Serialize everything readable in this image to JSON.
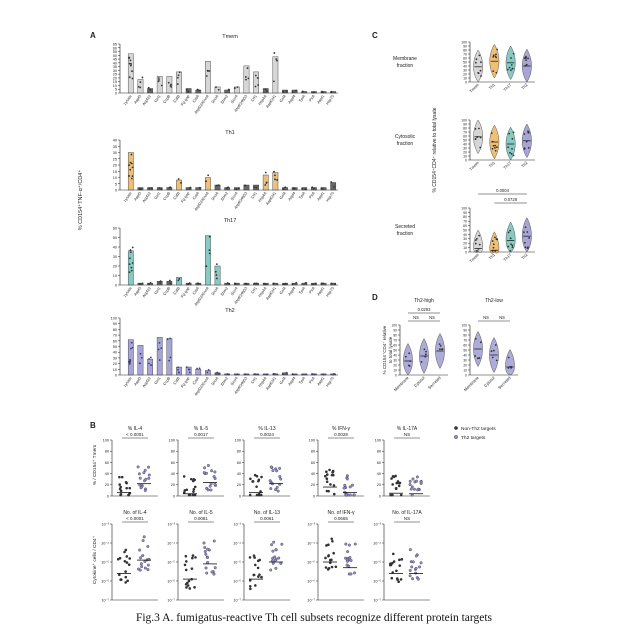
{
  "caption": "Fig.3 A. fumigatus-reactive Th cell subsets recognize different protein targets",
  "panel_letters": {
    "A": "A",
    "B": "B",
    "C": "C",
    "D": "D"
  },
  "colors": {
    "Tmem": "#c8c8c8",
    "Th1": "#e8a94c",
    "Th17": "#5fb8b0",
    "Th2": "#8a87c8",
    "Th2_dark": "#3d3a8a",
    "nonTh2": "#333333",
    "th2target": "#8e8bd0"
  },
  "panelA": {
    "ylabel": "% CD154⁺TNF-α⁺/CD4⁺",
    "categories": [
      "Lysate",
      "Aspf3",
      "Aspf22",
      "Gel1",
      "CcpB",
      "CatB",
      "Fg-gap",
      "CatA",
      "Aspf22/EnoA",
      "SnoA",
      "Shm2",
      "Scw4",
      "AspfOrf6D3",
      "Crf1",
      "Hsp4A",
      "AspfOrf1",
      "Gel4",
      "Aspf4",
      "TpiA",
      "PsA",
      "Aspf1",
      "Hsp70"
    ],
    "chart_data": [
      {
        "type": "bar",
        "subset": "Tmem",
        "title": "Tmem",
        "categories": [
          "Lysate",
          "Aspf3",
          "Aspf22",
          "Gel1",
          "CcpB",
          "CatB",
          "Fg-gap",
          "CatA",
          "Aspf22/EnoA",
          "SnoA",
          "Shm2",
          "Scw4",
          "AspfOrf6D3",
          "Crf1",
          "Hsp4A",
          "AspfOrf1",
          "Gel4",
          "Aspf4",
          "TpiA",
          "PsA",
          "Aspf1",
          "Hsp70"
        ],
        "values": [
          52,
          18,
          6,
          22,
          22,
          28,
          6,
          4,
          42,
          8,
          4,
          8,
          36,
          28,
          6,
          48,
          4,
          4,
          2,
          2,
          2,
          2
        ],
        "yticks": [
          "65",
          "60",
          "55",
          "50",
          "45",
          "40",
          "35",
          "30",
          "25",
          "20",
          "15",
          "10",
          "5",
          "0"
        ],
        "ylim": [
          0,
          65
        ]
      },
      {
        "type": "bar",
        "subset": "Th1",
        "title": "Th1",
        "categories": [
          "Lysate",
          "Aspf3",
          "Aspf22",
          "Gel1",
          "CcpB",
          "CatB",
          "Fg-gap",
          "CatA",
          "Aspf22/EnoA",
          "SnoA",
          "Shm2",
          "Scw4",
          "AspfOrf6D3",
          "Crf1",
          "Hsp4A",
          "AspfOrf1",
          "Gel4",
          "Aspf4",
          "TpiA",
          "PsA",
          "Aspf1",
          "Hsp70"
        ],
        "values": [
          30,
          2,
          2,
          2,
          2,
          8,
          2,
          2,
          10,
          4,
          2,
          2,
          4,
          4,
          12,
          14,
          2,
          2,
          2,
          2,
          2,
          6
        ],
        "yticks": [
          "40",
          "35",
          "30",
          "25",
          "20",
          "15",
          "10",
          "5",
          "0"
        ],
        "ylim": [
          0,
          40
        ]
      },
      {
        "type": "bar",
        "subset": "Th17",
        "title": "Th17",
        "categories": [
          "Lysate",
          "Aspf3",
          "Aspf22",
          "Gel1",
          "CcpB",
          "CatB",
          "Fg-gap",
          "CatA",
          "Aspf22/EnoA",
          "SnoA",
          "Shm2",
          "Scw4",
          "AspfOrf6D3",
          "Crf1",
          "Hsp4A",
          "AspfOrf1",
          "Gel4",
          "Aspf4",
          "TpiA",
          "PsA",
          "Aspf1",
          "Hsp70"
        ],
        "values": [
          36,
          2,
          2,
          4,
          4,
          8,
          2,
          2,
          52,
          20,
          2,
          2,
          2,
          2,
          2,
          2,
          2,
          2,
          2,
          2,
          2,
          2
        ],
        "yticks": [
          "60",
          "50",
          "40",
          "30",
          "20",
          "10",
          "0"
        ],
        "ylim": [
          0,
          60
        ]
      },
      {
        "type": "bar",
        "subset": "Th2",
        "title": "Th2",
        "categories": [
          "Lysate",
          "Aspf3",
          "Aspf22",
          "Gel1",
          "CcpB",
          "CatB",
          "Fg-gap",
          "CatA",
          "Aspf22/EnoA",
          "SnoA",
          "Shm2",
          "Scw4",
          "AspfOrf6D3",
          "Crf1",
          "Hsp4A",
          "AspfOrf1",
          "Gel4",
          "Aspf4",
          "TpiA",
          "PsA",
          "Aspf1",
          "Hsp70"
        ],
        "values": [
          62,
          52,
          28,
          66,
          64,
          14,
          14,
          10,
          8,
          4,
          2,
          2,
          2,
          2,
          2,
          2,
          4,
          2,
          2,
          2,
          2,
          2
        ],
        "yticks": [
          "100",
          "90",
          "80",
          "70",
          "60",
          "50",
          "40",
          "30",
          "20",
          "10",
          "0"
        ],
        "ylim": [
          0,
          100
        ]
      }
    ]
  },
  "panelB": {
    "ylabel_top": "% / CD154⁺ Tmem",
    "ylabel_bottom": "Cytokine⁺ cells / CD4⁺",
    "legend": [
      "Non-Th2 targets",
      "Th2 targets"
    ],
    "top_yticks": [
      "100",
      "80",
      "60",
      "40",
      "20",
      "0"
    ],
    "bottom_yticks": [
      "10⁻³",
      "10⁻⁴",
      "10⁻⁵",
      "10⁻⁶",
      "10⁻⁷"
    ],
    "chart_data": [
      {
        "type": "scatter",
        "row": "percent",
        "title": "% IL-4",
        "p": "< 0.0001",
        "groups": [
          {
            "name": "Non-Th2 targets",
            "median": 6
          },
          {
            "name": "Th2 targets",
            "median": 22
          }
        ],
        "ylim": [
          0,
          100
        ]
      },
      {
        "type": "scatter",
        "row": "percent",
        "title": "% IL-5",
        "p": "0.0017",
        "groups": [
          {
            "name": "Non-Th2 targets",
            "median": 4
          },
          {
            "name": "Th2 targets",
            "median": 24
          }
        ],
        "ylim": [
          0,
          100
        ]
      },
      {
        "type": "scatter",
        "row": "percent",
        "title": "% IL-13",
        "p": "0.0024",
        "groups": [
          {
            "name": "Non-Th2 targets",
            "median": 6
          },
          {
            "name": "Th2 targets",
            "median": 22
          }
        ],
        "ylim": [
          0,
          100
        ]
      },
      {
        "type": "scatter",
        "row": "percent",
        "title": "% IFN-γ",
        "p": "0.0028",
        "groups": [
          {
            "name": "Non-Th2 targets",
            "median": 16
          },
          {
            "name": "Th2 targets",
            "median": 6
          }
        ],
        "ylim": [
          0,
          100
        ]
      },
      {
        "type": "scatter",
        "row": "percent",
        "title": "% IL-17A",
        "p": "NS",
        "groups": [
          {
            "name": "Non-Th2 targets",
            "median": 5
          },
          {
            "name": "Th2 targets",
            "median": 4
          }
        ],
        "ylim": [
          0,
          100
        ]
      },
      {
        "type": "scatter",
        "row": "count",
        "title": "No. of IL-4",
        "p": "< 0.0001",
        "groups": [
          {
            "name": "Non-Th2 targets",
            "median": -5.6
          },
          {
            "name": "Th2 targets",
            "median": -4.9
          }
        ],
        "ylim": [
          -7,
          -3
        ]
      },
      {
        "type": "scatter",
        "row": "count",
        "title": "No. of IL-5",
        "p": "0.0081",
        "groups": [
          {
            "name": "Non-Th2 targets",
            "median": -5.9
          },
          {
            "name": "Th2 targets",
            "median": -5.1
          }
        ],
        "ylim": [
          -7,
          -3
        ]
      },
      {
        "type": "scatter",
        "row": "count",
        "title": "No. of IL-13",
        "p": "0.0061",
        "groups": [
          {
            "name": "Non-Th2 targets",
            "median": -5.9
          },
          {
            "name": "Th2 targets",
            "median": -5.0
          }
        ],
        "ylim": [
          -7,
          -3
        ]
      },
      {
        "type": "scatter",
        "row": "count",
        "title": "No. of IFN-γ",
        "p": "0.0665",
        "groups": [
          {
            "name": "Non-Th2 targets",
            "median": -5.0
          },
          {
            "name": "Th2 targets",
            "median": -5.3
          }
        ],
        "ylim": [
          -7,
          -3
        ]
      },
      {
        "type": "scatter",
        "row": "count",
        "title": "No. of IL-17A",
        "p": "NS",
        "groups": [
          {
            "name": "Non-Th2 targets",
            "median": -5.6
          },
          {
            "name": "Th2 targets",
            "median": -5.6
          }
        ],
        "ylim": [
          -7,
          -3
        ]
      }
    ]
  },
  "panelC": {
    "ylabel": "% CD154⁺CD4⁺ relative to total lysate",
    "yticks": [
      "100",
      "90",
      "80",
      "70",
      "60",
      "50",
      "40",
      "30",
      "20",
      "10",
      "0"
    ],
    "categories": [
      "Tmem",
      "Th1",
      "Th17",
      "Th2"
    ],
    "chart_data": [
      {
        "type": "violin",
        "fraction": "Membrane fraction",
        "label_lines": [
          "Membrane",
          "fraction"
        ],
        "medians": [
          38,
          52,
          48,
          40
        ],
        "ylim": [
          0,
          100
        ]
      },
      {
        "type": "violin",
        "fraction": "Cytosolic fraction",
        "label_lines": [
          "Cytosolic",
          "fraction"
        ],
        "medians": [
          58,
          45,
          40,
          48
        ],
        "ylim": [
          0,
          100
        ]
      },
      {
        "type": "violin",
        "fraction": "Secreted fraction",
        "label_lines": [
          "Secreted",
          "fraction"
        ],
        "medians": [
          8,
          4,
          26,
          36
        ],
        "ylim": [
          0,
          100
        ],
        "p_values": [
          "0.0004",
          "0.0728"
        ]
      }
    ]
  },
  "panelD": {
    "ylabel_lines": [
      "% CD154⁺CD4⁺ relative",
      "to total lysate"
    ],
    "yticks": [
      "100",
      "90",
      "80",
      "70",
      "60",
      "50",
      "40",
      "30",
      "20",
      "10",
      "0"
    ],
    "categories": [
      "Membrane",
      "Cytosol",
      "Secreted"
    ],
    "chart_data": [
      {
        "type": "violin",
        "title": "Th2-high",
        "medians": [
          28,
          38,
          48
        ],
        "ylim": [
          0,
          100
        ],
        "p_overall": "0.0293",
        "p_pairs": [
          "NS",
          "NS"
        ]
      },
      {
        "type": "violin",
        "title": "Th2-low",
        "medians": [
          52,
          40,
          16
        ],
        "ylim": [
          0,
          100
        ],
        "p_overall": "",
        "p_pairs": [
          "NS",
          "NS"
        ]
      }
    ]
  }
}
